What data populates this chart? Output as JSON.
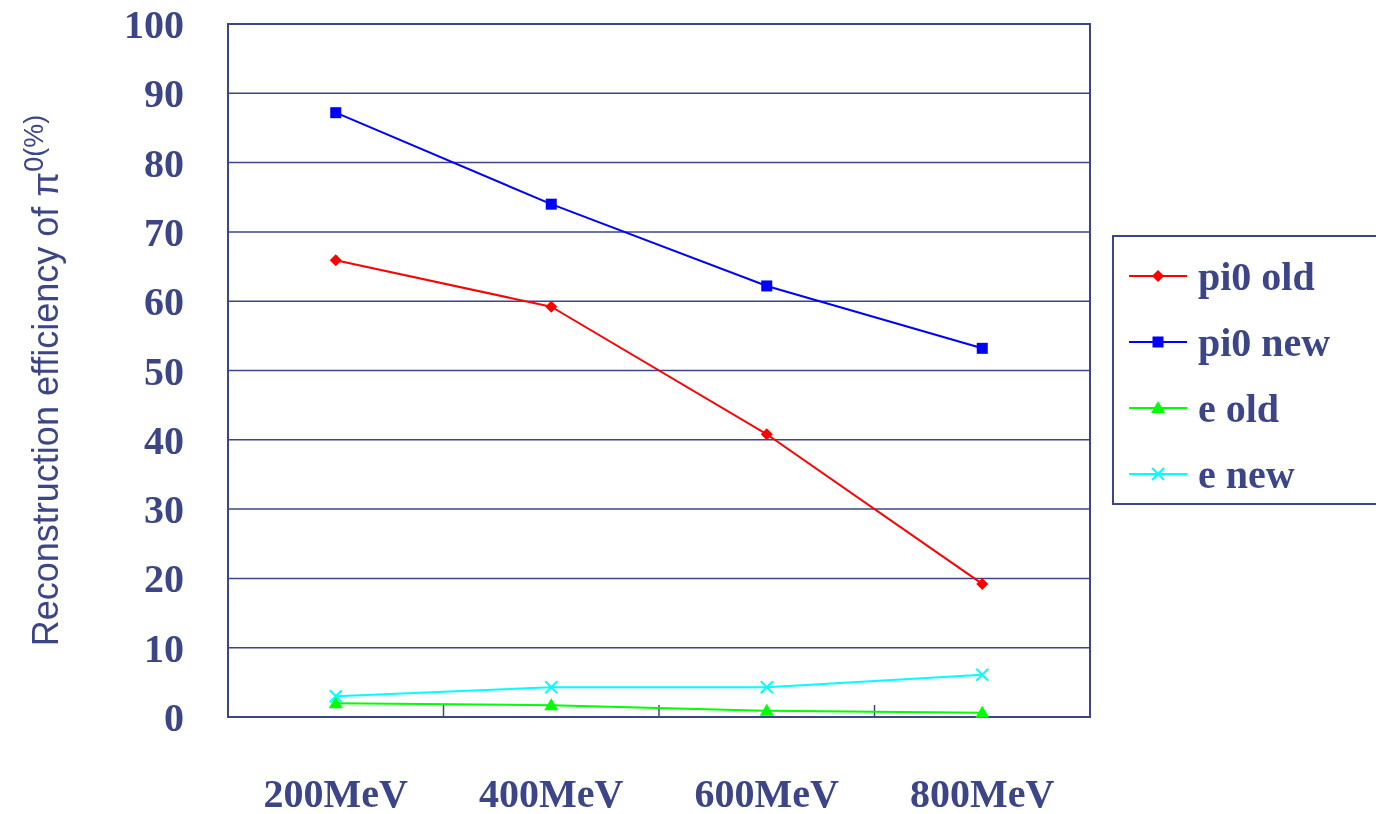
{
  "chart_data": {
    "type": "line",
    "ylabel": "Reconstruction efficiency of π$^{0(%)}$",
    "categories": [
      "200MeV",
      "400MeV",
      "600MeV",
      "800MeV"
    ],
    "ylim": [
      0,
      100
    ],
    "yticks": [
      0,
      10,
      20,
      30,
      40,
      50,
      60,
      70,
      80,
      90,
      100
    ],
    "grid": "y",
    "legend": "right",
    "series": [
      {
        "name": "pi0 old",
        "color": "#ff0000",
        "marker": "diamond",
        "values": [
          65.9,
          59.2,
          40.8,
          19.2
        ]
      },
      {
        "name": "pi0 new",
        "color": "#0000ff",
        "marker": "square",
        "values": [
          87.2,
          74.0,
          62.2,
          53.2
        ]
      },
      {
        "name": "e old",
        "color": "#00ff00",
        "marker": "triangle",
        "values": [
          2.0,
          1.7,
          0.9,
          0.6
        ]
      },
      {
        "name": "e new",
        "color": "#00ffff",
        "marker": "cross",
        "values": [
          3.0,
          4.3,
          4.3,
          6.1
        ]
      }
    ]
  }
}
